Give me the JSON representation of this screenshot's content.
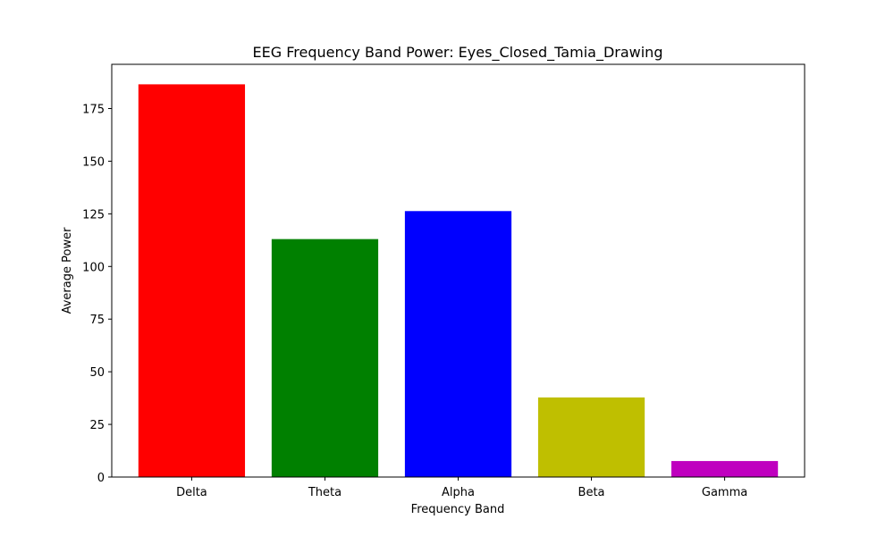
{
  "chart_data": {
    "type": "bar",
    "title": "EEG Frequency Band Power: Eyes_Closed_Tamia_Drawing",
    "xlabel": "Frequency Band",
    "ylabel": "Average Power",
    "categories": [
      "Delta",
      "Theta",
      "Alpha",
      "Beta",
      "Gamma"
    ],
    "values": [
      186.5,
      113.0,
      126.3,
      37.8,
      7.6
    ],
    "colors": [
      "#ff0000",
      "#008000",
      "#0000ff",
      "#bfbf00",
      "#bf00bf"
    ],
    "ylim": [
      0,
      196
    ],
    "yticks": [
      0,
      25,
      50,
      75,
      100,
      125,
      150,
      175
    ],
    "grid": false,
    "legend": "none"
  }
}
